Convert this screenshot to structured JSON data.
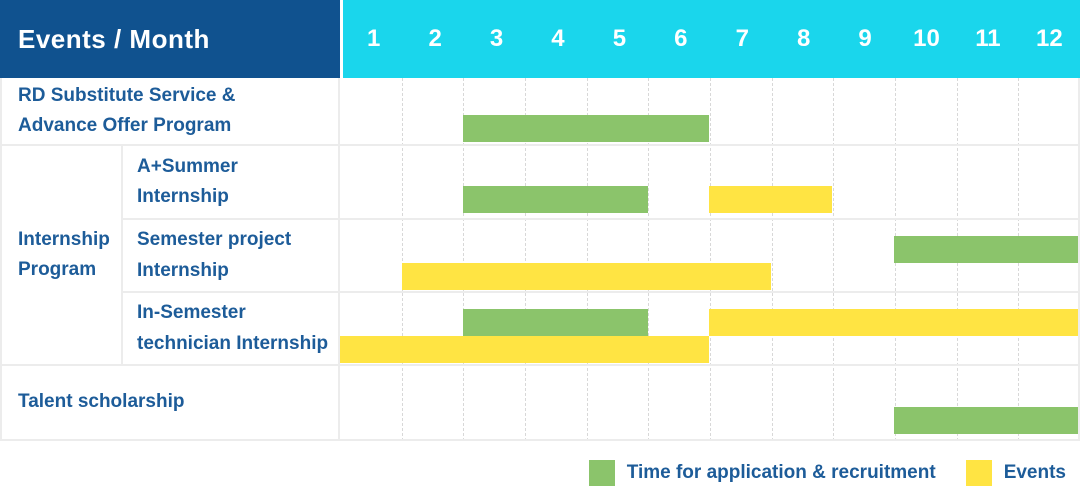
{
  "header": {
    "label": "Events / Month",
    "months": [
      "1",
      "2",
      "3",
      "4",
      "5",
      "6",
      "7",
      "8",
      "9",
      "10",
      "11",
      "12"
    ]
  },
  "colors": {
    "header_blue": "#10528f",
    "month_strip_cyan": "#1ad6ec",
    "bar_green": "#8bc46b",
    "bar_yellow": "#ffe443",
    "label_blue": "#1d5c99"
  },
  "group_label": "Internship Program",
  "chart_data": {
    "type": "gantt",
    "title": "Events / Month",
    "x_unit": "month",
    "x_range": [
      1,
      12
    ],
    "x_ticks": [
      1,
      2,
      3,
      4,
      5,
      6,
      7,
      8,
      9,
      10,
      11,
      12
    ],
    "legend_position": "bottom-right",
    "legend": {
      "application": "Time for application & recruitment",
      "event": "Events"
    },
    "rows": [
      {
        "row": "RD Substitute Service & Advance Offer Program",
        "bars": [
          {
            "type": "application",
            "start": 3,
            "end": 6,
            "lane": "single"
          }
        ]
      },
      {
        "row": "A+Summer Internship",
        "group": "Internship Program",
        "bars": [
          {
            "type": "application",
            "start": 3,
            "end": 5,
            "lane": "single"
          },
          {
            "type": "event",
            "start": 7,
            "end": 8,
            "lane": "single"
          }
        ]
      },
      {
        "row": "Semester project Internship",
        "group": "Internship Program",
        "bars": [
          {
            "type": "application",
            "start": 10,
            "end": 12,
            "lane": "top"
          },
          {
            "type": "event",
            "start": 2,
            "end": 7,
            "lane": "bottom"
          }
        ]
      },
      {
        "row": "In-Semester technician Internship",
        "group": "Internship Program",
        "bars": [
          {
            "type": "application",
            "start": 3,
            "end": 5,
            "lane": "top"
          },
          {
            "type": "event",
            "start": 7,
            "end": 12,
            "lane": "top"
          },
          {
            "type": "event",
            "start": 1,
            "end": 6,
            "lane": "bottom"
          }
        ]
      },
      {
        "row": "Talent scholarship",
        "bars": [
          {
            "type": "application",
            "start": 10,
            "end": 12,
            "lane": "single"
          }
        ]
      }
    ]
  }
}
